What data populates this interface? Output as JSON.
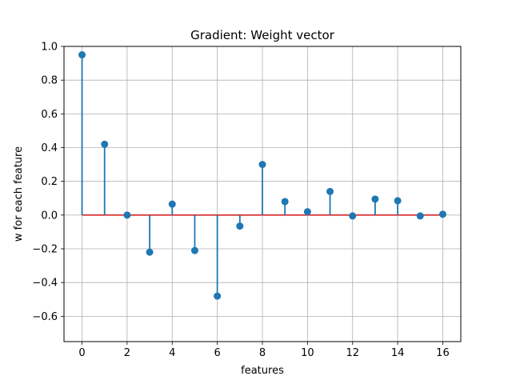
{
  "chart_data": {
    "type": "stem",
    "title": "Gradient: Weight vector",
    "xlabel": "features",
    "ylabel": "w for each feature",
    "xlim": [
      -0.8,
      16.8
    ],
    "ylim": [
      -0.75,
      1.0
    ],
    "x_ticks": [
      0,
      2,
      4,
      6,
      8,
      10,
      12,
      14,
      16
    ],
    "y_ticks": [
      -0.6,
      -0.4,
      -0.2,
      0.0,
      0.2,
      0.4,
      0.6,
      0.8,
      1.0
    ],
    "x_tick_labels": [
      "0",
      "2",
      "4",
      "6",
      "8",
      "10",
      "12",
      "14",
      "16"
    ],
    "y_tick_labels": [
      "−0.6",
      "−0.4",
      "−0.2",
      "0.0",
      "0.2",
      "0.4",
      "0.6",
      "0.8",
      "1.0"
    ],
    "grid": true,
    "x": [
      0,
      1,
      2,
      3,
      4,
      5,
      6,
      7,
      8,
      9,
      10,
      11,
      12,
      13,
      14,
      15,
      16
    ],
    "values": [
      0.95,
      0.42,
      0.0,
      -0.22,
      0.065,
      -0.21,
      -0.48,
      -0.065,
      0.3,
      0.08,
      0.02,
      0.14,
      -0.005,
      0.095,
      0.085,
      -0.005,
      0.005
    ],
    "baseline": 0,
    "colors": {
      "stem": "#1f77b4",
      "marker": "#1f77b4",
      "baseline": "#d62728",
      "grid": "#b0b0b0",
      "frame": "#000000"
    }
  }
}
